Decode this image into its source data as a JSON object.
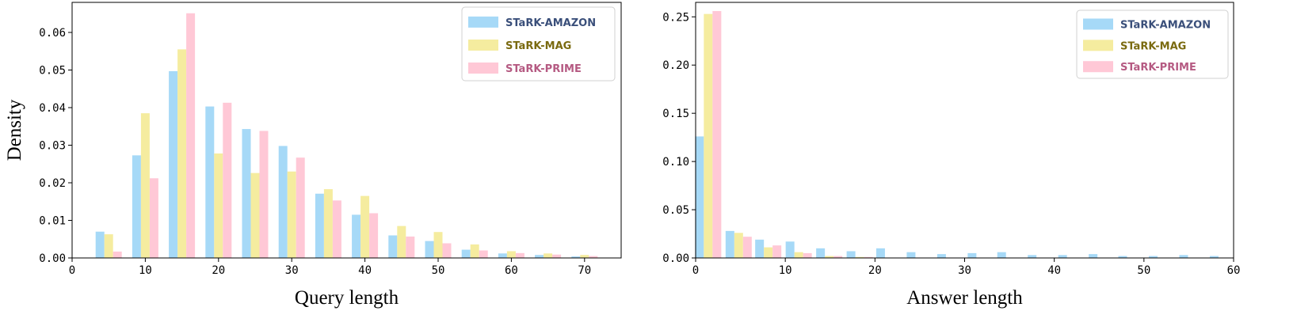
{
  "chart_data": [
    {
      "type": "bar",
      "xlabel": "Query length",
      "ylabel": "Density",
      "xlim": [
        0,
        75
      ],
      "ylim": [
        0,
        0.068
      ],
      "xticks": [
        0,
        10,
        20,
        30,
        40,
        50,
        60,
        70
      ],
      "yticks": [
        0.0,
        0.01,
        0.02,
        0.03,
        0.04,
        0.05,
        0.06
      ],
      "ytick_labels": [
        "0.00",
        "0.01",
        "0.02",
        "0.03",
        "0.04",
        "0.05",
        "0.06"
      ],
      "grid": false,
      "legend_position": "top-right",
      "bins": [
        5,
        10,
        15,
        20,
        25,
        30,
        35,
        40,
        45,
        50,
        55,
        60,
        65,
        70
      ],
      "series": [
        {
          "name": "STaRK-AMAZON",
          "color": "#a6d9f7",
          "text_color": "#3a4f7a",
          "values": [
            0.007,
            0.0273,
            0.0497,
            0.0403,
            0.0343,
            0.0298,
            0.0171,
            0.0115,
            0.006,
            0.0045,
            0.0022,
            0.0012,
            0.0008,
            0.0004
          ]
        },
        {
          "name": "STaRK-MAG",
          "color": "#f5ec9f",
          "text_color": "#7a6a10",
          "values": [
            0.0063,
            0.0385,
            0.0555,
            0.0278,
            0.0226,
            0.023,
            0.0183,
            0.0165,
            0.0085,
            0.0069,
            0.0036,
            0.0018,
            0.0012,
            0.0008
          ]
        },
        {
          "name": "STaRK-PRIME",
          "color": "#ffc8d6",
          "text_color": "#b55a82",
          "values": [
            0.0017,
            0.0212,
            0.0651,
            0.0413,
            0.0338,
            0.0267,
            0.0153,
            0.0119,
            0.0057,
            0.0039,
            0.002,
            0.0013,
            0.0009,
            0.0005
          ]
        }
      ]
    },
    {
      "type": "bar",
      "xlabel": "Answer length",
      "ylabel": "",
      "xlim": [
        0,
        60
      ],
      "ylim": [
        0,
        0.265
      ],
      "xticks": [
        0,
        10,
        20,
        30,
        40,
        50,
        60
      ],
      "yticks": [
        0.0,
        0.05,
        0.1,
        0.15,
        0.2,
        0.25
      ],
      "ytick_labels": [
        "0.00",
        "0.05",
        "0.10",
        "0.15",
        "0.20",
        "0.25"
      ],
      "grid": false,
      "legend_position": "top-right",
      "bins": [
        1.4,
        4.8,
        8.1,
        11.5,
        14.9,
        18.3,
        21.6,
        25.0,
        28.4,
        31.8,
        35.1,
        38.5,
        41.9,
        45.3,
        48.6,
        52.0,
        55.4,
        58.8
      ],
      "series": [
        {
          "name": "STaRK-AMAZON",
          "color": "#a6d9f7",
          "text_color": "#3a4f7a",
          "values": [
            0.126,
            0.028,
            0.019,
            0.017,
            0.01,
            0.007,
            0.01,
            0.006,
            0.004,
            0.005,
            0.006,
            0.003,
            0.003,
            0.004,
            0.002,
            0.002,
            0.003,
            0.002
          ]
        },
        {
          "name": "STaRK-MAG",
          "color": "#f5ec9f",
          "text_color": "#7a6a10",
          "values": [
            0.253,
            0.026,
            0.011,
            0.006,
            0.002,
            0.001,
            0,
            0,
            0,
            0,
            0,
            0,
            0,
            0,
            0,
            0,
            0,
            0
          ]
        },
        {
          "name": "STaRK-PRIME",
          "color": "#ffc8d6",
          "text_color": "#b55a82",
          "values": [
            0.256,
            0.022,
            0.013,
            0.005,
            0.002,
            0.001,
            0,
            0,
            0,
            0,
            0,
            0,
            0,
            0,
            0,
            0,
            0,
            0
          ]
        }
      ]
    }
  ]
}
